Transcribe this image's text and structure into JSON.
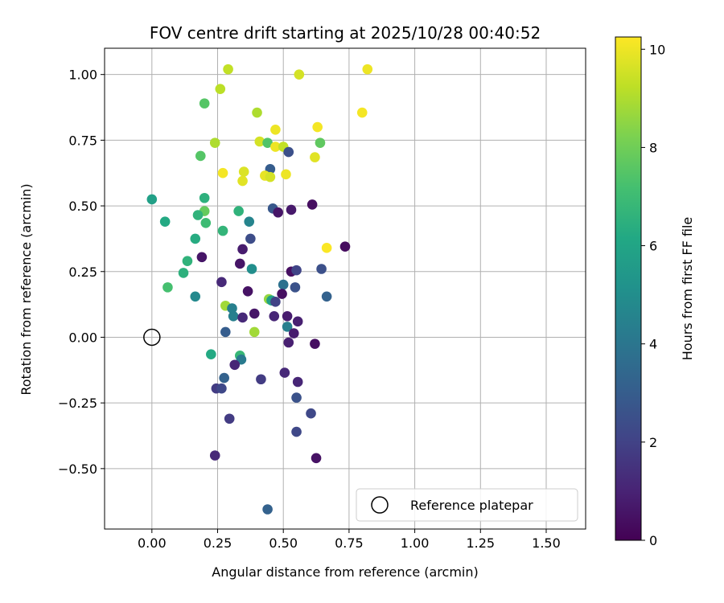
{
  "chart_data": {
    "type": "scatter",
    "title": "FOV centre drift starting at 2025/10/28 00:40:52",
    "xlabel": "Angular distance from reference (arcmin)",
    "ylabel": "Rotation from reference (arcmin)",
    "colorbar_label": "Hours from first FF file",
    "xlim": [
      -0.18,
      1.65
    ],
    "ylim": [
      -0.73,
      1.1
    ],
    "x_ticks": [
      0.0,
      0.25,
      0.5,
      0.75,
      1.0,
      1.25,
      1.5
    ],
    "x_tick_labels": [
      "0.00",
      "0.25",
      "0.50",
      "0.75",
      "1.00",
      "1.25",
      "1.50"
    ],
    "y_ticks": [
      -0.5,
      -0.25,
      0.0,
      0.25,
      0.5,
      0.75,
      1.0
    ],
    "y_tick_labels": [
      "−0.50",
      "−0.25",
      "0.00",
      "0.25",
      "0.50",
      "0.75",
      "1.00"
    ],
    "colorbar_range": [
      0,
      10.25
    ],
    "colorbar_ticks": [
      0,
      2,
      4,
      6,
      8,
      10
    ],
    "colorbar_tick_labels": [
      "0",
      "2",
      "4",
      "6",
      "8",
      "10"
    ],
    "grid": true,
    "legend": {
      "position": "lower-right",
      "label": "Reference platepar"
    },
    "reference_point": {
      "x": 0.0,
      "y": 0.0
    },
    "points": [
      {
        "x": 0.29,
        "y": 1.02,
        "t": 9.3
      },
      {
        "x": 0.56,
        "y": 1.0,
        "t": 9.6
      },
      {
        "x": 0.82,
        "y": 1.02,
        "t": 10.0
      },
      {
        "x": 0.26,
        "y": 0.945,
        "t": 9.2
      },
      {
        "x": 0.2,
        "y": 0.89,
        "t": 7.5
      },
      {
        "x": 0.4,
        "y": 0.855,
        "t": 9.0
      },
      {
        "x": 0.8,
        "y": 0.855,
        "t": 10.1
      },
      {
        "x": 0.47,
        "y": 0.79,
        "t": 10.0
      },
      {
        "x": 0.63,
        "y": 0.8,
        "t": 10.1
      },
      {
        "x": 0.24,
        "y": 0.74,
        "t": 9.0
      },
      {
        "x": 0.41,
        "y": 0.745,
        "t": 9.6
      },
      {
        "x": 0.44,
        "y": 0.74,
        "t": 7.4
      },
      {
        "x": 0.47,
        "y": 0.725,
        "t": 10.0
      },
      {
        "x": 0.5,
        "y": 0.725,
        "t": 9.3
      },
      {
        "x": 0.64,
        "y": 0.74,
        "t": 7.7
      },
      {
        "x": 0.52,
        "y": 0.705,
        "t": 2.5
      },
      {
        "x": 0.185,
        "y": 0.69,
        "t": 7.5
      },
      {
        "x": 0.62,
        "y": 0.685,
        "t": 9.8
      },
      {
        "x": 0.27,
        "y": 0.625,
        "t": 10.1
      },
      {
        "x": 0.35,
        "y": 0.63,
        "t": 9.7
      },
      {
        "x": 0.45,
        "y": 0.64,
        "t": 3.0
      },
      {
        "x": 0.345,
        "y": 0.595,
        "t": 9.8
      },
      {
        "x": 0.43,
        "y": 0.615,
        "t": 9.9
      },
      {
        "x": 0.45,
        "y": 0.61,
        "t": 9.6
      },
      {
        "x": 0.51,
        "y": 0.62,
        "t": 10.0
      },
      {
        "x": 0.0,
        "y": 0.525,
        "t": 5.8
      },
      {
        "x": 0.2,
        "y": 0.53,
        "t": 6.5
      },
      {
        "x": 0.46,
        "y": 0.49,
        "t": 2.8
      },
      {
        "x": 0.48,
        "y": 0.475,
        "t": 0.6
      },
      {
        "x": 0.53,
        "y": 0.485,
        "t": 0.7
      },
      {
        "x": 0.61,
        "y": 0.505,
        "t": 0.4
      },
      {
        "x": 0.2,
        "y": 0.48,
        "t": 7.8
      },
      {
        "x": 0.33,
        "y": 0.48,
        "t": 6.6
      },
      {
        "x": 0.05,
        "y": 0.44,
        "t": 6.2
      },
      {
        "x": 0.175,
        "y": 0.465,
        "t": 6.6
      },
      {
        "x": 0.205,
        "y": 0.435,
        "t": 7.0
      },
      {
        "x": 0.37,
        "y": 0.44,
        "t": 4.6
      },
      {
        "x": 0.27,
        "y": 0.405,
        "t": 6.7
      },
      {
        "x": 0.165,
        "y": 0.375,
        "t": 6.3
      },
      {
        "x": 0.375,
        "y": 0.375,
        "t": 2.4
      },
      {
        "x": 0.665,
        "y": 0.34,
        "t": 10.2
      },
      {
        "x": 0.735,
        "y": 0.345,
        "t": 0.3
      },
      {
        "x": 0.19,
        "y": 0.305,
        "t": 0.6
      },
      {
        "x": 0.345,
        "y": 0.335,
        "t": 0.8
      },
      {
        "x": 0.135,
        "y": 0.29,
        "t": 6.6
      },
      {
        "x": 0.335,
        "y": 0.28,
        "t": 0.6
      },
      {
        "x": 0.38,
        "y": 0.26,
        "t": 5.0
      },
      {
        "x": 0.53,
        "y": 0.25,
        "t": 0.4
      },
      {
        "x": 0.55,
        "y": 0.255,
        "t": 2.1
      },
      {
        "x": 0.645,
        "y": 0.26,
        "t": 2.5
      },
      {
        "x": 0.12,
        "y": 0.245,
        "t": 6.5
      },
      {
        "x": 0.06,
        "y": 0.19,
        "t": 7.2
      },
      {
        "x": 0.265,
        "y": 0.21,
        "t": 1.2
      },
      {
        "x": 0.5,
        "y": 0.2,
        "t": 3.8
      },
      {
        "x": 0.545,
        "y": 0.19,
        "t": 2.6
      },
      {
        "x": 0.365,
        "y": 0.175,
        "t": 0.5
      },
      {
        "x": 0.495,
        "y": 0.165,
        "t": 0.4
      },
      {
        "x": 0.165,
        "y": 0.155,
        "t": 4.8
      },
      {
        "x": 0.665,
        "y": 0.155,
        "t": 3.2
      },
      {
        "x": 0.445,
        "y": 0.145,
        "t": 8.6
      },
      {
        "x": 0.455,
        "y": 0.14,
        "t": 5.8
      },
      {
        "x": 0.47,
        "y": 0.135,
        "t": 2.0
      },
      {
        "x": 0.28,
        "y": 0.12,
        "t": 8.8
      },
      {
        "x": 0.305,
        "y": 0.11,
        "t": 4.4
      },
      {
        "x": 0.31,
        "y": 0.08,
        "t": 4.4
      },
      {
        "x": 0.345,
        "y": 0.075,
        "t": 1.2
      },
      {
        "x": 0.39,
        "y": 0.09,
        "t": 0.6
      },
      {
        "x": 0.465,
        "y": 0.08,
        "t": 1.1
      },
      {
        "x": 0.515,
        "y": 0.08,
        "t": 0.8
      },
      {
        "x": 0.555,
        "y": 0.06,
        "t": 0.9
      },
      {
        "x": 0.28,
        "y": 0.02,
        "t": 3.0
      },
      {
        "x": 0.39,
        "y": 0.02,
        "t": 8.8
      },
      {
        "x": 0.515,
        "y": 0.04,
        "t": 4.4
      },
      {
        "x": 0.54,
        "y": 0.015,
        "t": 0.8
      },
      {
        "x": 0.52,
        "y": -0.02,
        "t": 0.9
      },
      {
        "x": 0.62,
        "y": -0.025,
        "t": 0.4
      },
      {
        "x": 0.225,
        "y": -0.065,
        "t": 6.2
      },
      {
        "x": 0.335,
        "y": -0.07,
        "t": 6.8
      },
      {
        "x": 0.34,
        "y": -0.085,
        "t": 4.2
      },
      {
        "x": 0.315,
        "y": -0.105,
        "t": 1.1
      },
      {
        "x": 0.505,
        "y": -0.135,
        "t": 1.2
      },
      {
        "x": 0.275,
        "y": -0.155,
        "t": 3.2
      },
      {
        "x": 0.415,
        "y": -0.16,
        "t": 1.8
      },
      {
        "x": 0.555,
        "y": -0.17,
        "t": 1.1
      },
      {
        "x": 0.245,
        "y": -0.195,
        "t": 1.8
      },
      {
        "x": 0.265,
        "y": -0.195,
        "t": 2.2
      },
      {
        "x": 0.55,
        "y": -0.23,
        "t": 2.6
      },
      {
        "x": 0.605,
        "y": -0.29,
        "t": 2.2
      },
      {
        "x": 0.295,
        "y": -0.31,
        "t": 1.8
      },
      {
        "x": 0.55,
        "y": -0.36,
        "t": 2.2
      },
      {
        "x": 0.24,
        "y": -0.45,
        "t": 1.2
      },
      {
        "x": 0.625,
        "y": -0.46,
        "t": 0.5
      },
      {
        "x": 0.44,
        "y": -0.655,
        "t": 3.2
      }
    ]
  }
}
